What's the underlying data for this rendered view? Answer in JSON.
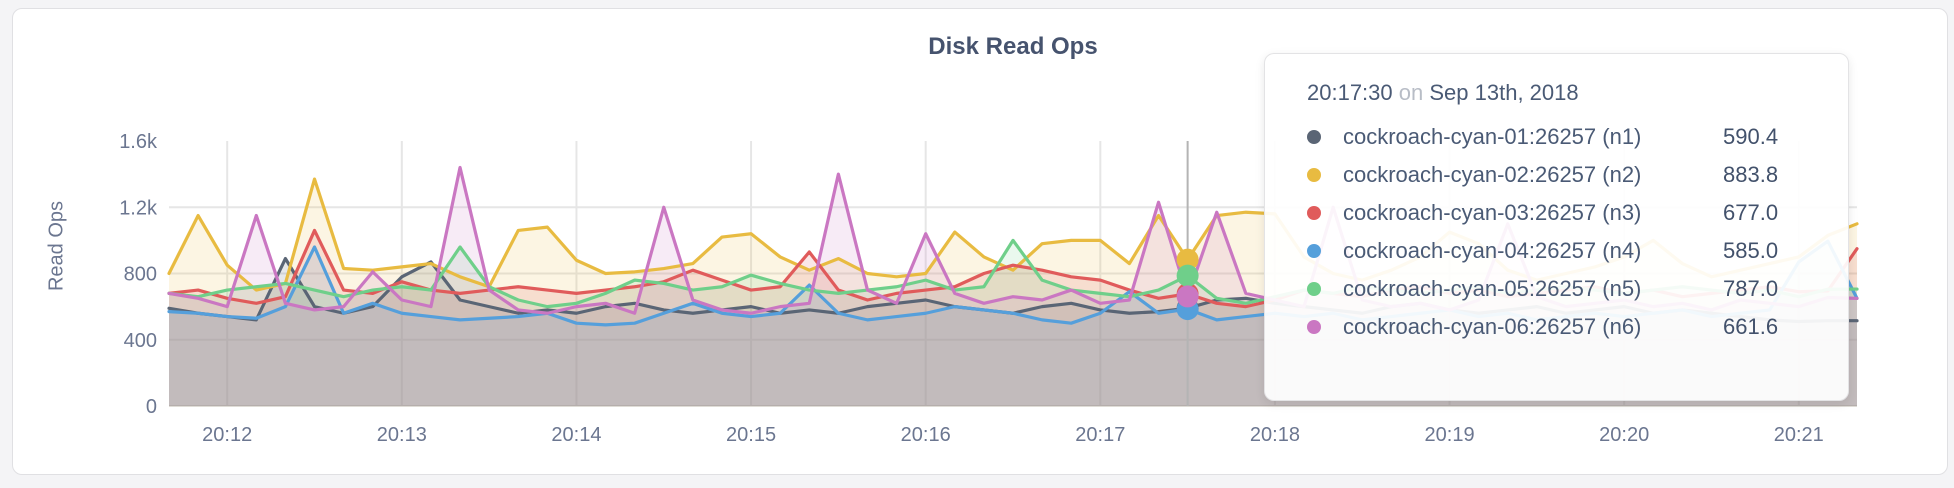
{
  "tooltip": {
    "time": "20:17:30",
    "connector": "on",
    "date": "Sep 13th, 2018",
    "rows": [
      {
        "name": "cockroach-cyan-01:26257 (n1)",
        "value": "590.4"
      },
      {
        "name": "cockroach-cyan-02:26257 (n2)",
        "value": "883.8"
      },
      {
        "name": "cockroach-cyan-03:26257 (n3)",
        "value": "677.0"
      },
      {
        "name": "cockroach-cyan-04:26257 (n4)",
        "value": "585.0"
      },
      {
        "name": "cockroach-cyan-05:26257 (n5)",
        "value": "787.0"
      },
      {
        "name": "cockroach-cyan-06:26257 (n6)",
        "value": "661.6"
      }
    ]
  },
  "chart_data": {
    "type": "area",
    "title": "Disk Read Ops",
    "ylabel": "Read Ops",
    "ylim": [
      0,
      1600
    ],
    "x_start": "20:11:40",
    "x_step_seconds": 10,
    "grid": true,
    "legend_position": "tooltip",
    "hover_index": 35,
    "hover_time": "20:17:30",
    "y_ticks": [
      {
        "value": 0,
        "label": "0",
        "grid": false
      },
      {
        "value": 400,
        "label": "400",
        "grid": true
      },
      {
        "value": 800,
        "label": "800",
        "grid": true
      },
      {
        "value": 1200,
        "label": "1.2k",
        "grid": true
      },
      {
        "value": 1600,
        "label": "1.6k",
        "grid": false
      }
    ],
    "x_ticks": [
      {
        "index": 2,
        "label": "20:12"
      },
      {
        "index": 8,
        "label": "20:13"
      },
      {
        "index": 14,
        "label": "20:14"
      },
      {
        "index": 20,
        "label": "20:15"
      },
      {
        "index": 26,
        "label": "20:16"
      },
      {
        "index": 32,
        "label": "20:17"
      },
      {
        "index": 38,
        "label": "20:18"
      },
      {
        "index": 44,
        "label": "20:19"
      },
      {
        "index": 50,
        "label": "20:20"
      },
      {
        "index": 56,
        "label": "20:21"
      }
    ],
    "series": [
      {
        "name": "cockroach-cyan-01:26257 (n1)",
        "color": "#5a6575",
        "values": [
          590,
          560,
          540,
          520,
          890,
          600,
          560,
          600,
          780,
          870,
          640,
          600,
          560,
          580,
          560,
          600,
          620,
          580,
          560,
          580,
          600,
          560,
          580,
          560,
          600,
          620,
          640,
          600,
          580,
          560,
          600,
          620,
          580,
          560,
          570,
          590.4,
          640,
          650,
          620,
          600,
          580,
          560,
          600,
          620,
          580,
          560,
          580,
          600,
          560,
          580,
          600,
          560,
          580,
          560,
          540,
          520,
          510,
          515,
          515
        ]
      },
      {
        "name": "cockroach-cyan-02:26257 (n2)",
        "color": "#e8bb41",
        "values": [
          800,
          1150,
          850,
          700,
          740,
          1370,
          830,
          820,
          840,
          860,
          780,
          720,
          1060,
          1080,
          880,
          800,
          810,
          830,
          860,
          1020,
          1040,
          900,
          820,
          890,
          800,
          780,
          800,
          1050,
          900,
          820,
          980,
          1000,
          1000,
          860,
          1150,
          883.8,
          1150,
          1170,
          1160,
          900,
          800,
          760,
          820,
          900,
          1050,
          980,
          820,
          760,
          800,
          840,
          900,
          1000,
          860,
          780,
          820,
          860,
          900,
          1030,
          1100
        ]
      },
      {
        "name": "cockroach-cyan-03:26257 (n3)",
        "color": "#e05b5b",
        "values": [
          680,
          700,
          650,
          620,
          660,
          1060,
          700,
          680,
          750,
          700,
          680,
          700,
          720,
          700,
          680,
          700,
          720,
          750,
          820,
          760,
          700,
          720,
          930,
          700,
          640,
          680,
          700,
          720,
          800,
          850,
          820,
          780,
          760,
          700,
          650,
          677,
          620,
          600,
          640,
          700,
          680,
          660,
          700,
          720,
          680,
          700,
          660,
          680,
          700,
          720,
          680,
          700,
          660,
          680,
          700,
          720,
          690,
          695,
          950
        ]
      },
      {
        "name": "cockroach-cyan-04:26257 (n4)",
        "color": "#559fdb",
        "values": [
          570,
          560,
          540,
          530,
          600,
          960,
          560,
          620,
          560,
          540,
          520,
          530,
          540,
          560,
          500,
          490,
          500,
          560,
          620,
          560,
          540,
          560,
          730,
          560,
          520,
          540,
          560,
          600,
          580,
          560,
          520,
          500,
          560,
          690,
          560,
          585,
          520,
          540,
          560,
          540,
          560,
          520,
          540,
          560,
          580,
          540,
          560,
          520,
          540,
          560,
          540,
          560,
          580,
          540,
          560,
          580,
          870,
          995,
          650
        ]
      },
      {
        "name": "cockroach-cyan-05:26257 (n5)",
        "color": "#6fcf8a",
        "values": [
          680,
          660,
          700,
          720,
          740,
          700,
          660,
          700,
          720,
          700,
          960,
          720,
          640,
          600,
          620,
          680,
          760,
          740,
          700,
          720,
          790,
          740,
          700,
          680,
          700,
          720,
          760,
          700,
          720,
          1000,
          760,
          700,
          680,
          660,
          700,
          787,
          650,
          620,
          660,
          700,
          680,
          720,
          700,
          680,
          700,
          720,
          680,
          700,
          720,
          700,
          680,
          700,
          720,
          700,
          680,
          700,
          660,
          705,
          706
        ]
      },
      {
        "name": "cockroach-cyan-06:26257 (n6)",
        "color": "#ca77c2",
        "values": [
          680,
          650,
          600,
          1150,
          620,
          580,
          600,
          810,
          640,
          600,
          1440,
          700,
          580,
          560,
          600,
          620,
          560,
          1200,
          640,
          580,
          560,
          600,
          620,
          1400,
          700,
          620,
          1040,
          680,
          620,
          660,
          640,
          700,
          620,
          640,
          1230,
          661.6,
          1170,
          680,
          640,
          600,
          1200,
          640,
          600,
          620,
          580,
          640,
          1100,
          660,
          600,
          620,
          640,
          600,
          620,
          580,
          640,
          620,
          600,
          655,
          650
        ]
      }
    ]
  }
}
